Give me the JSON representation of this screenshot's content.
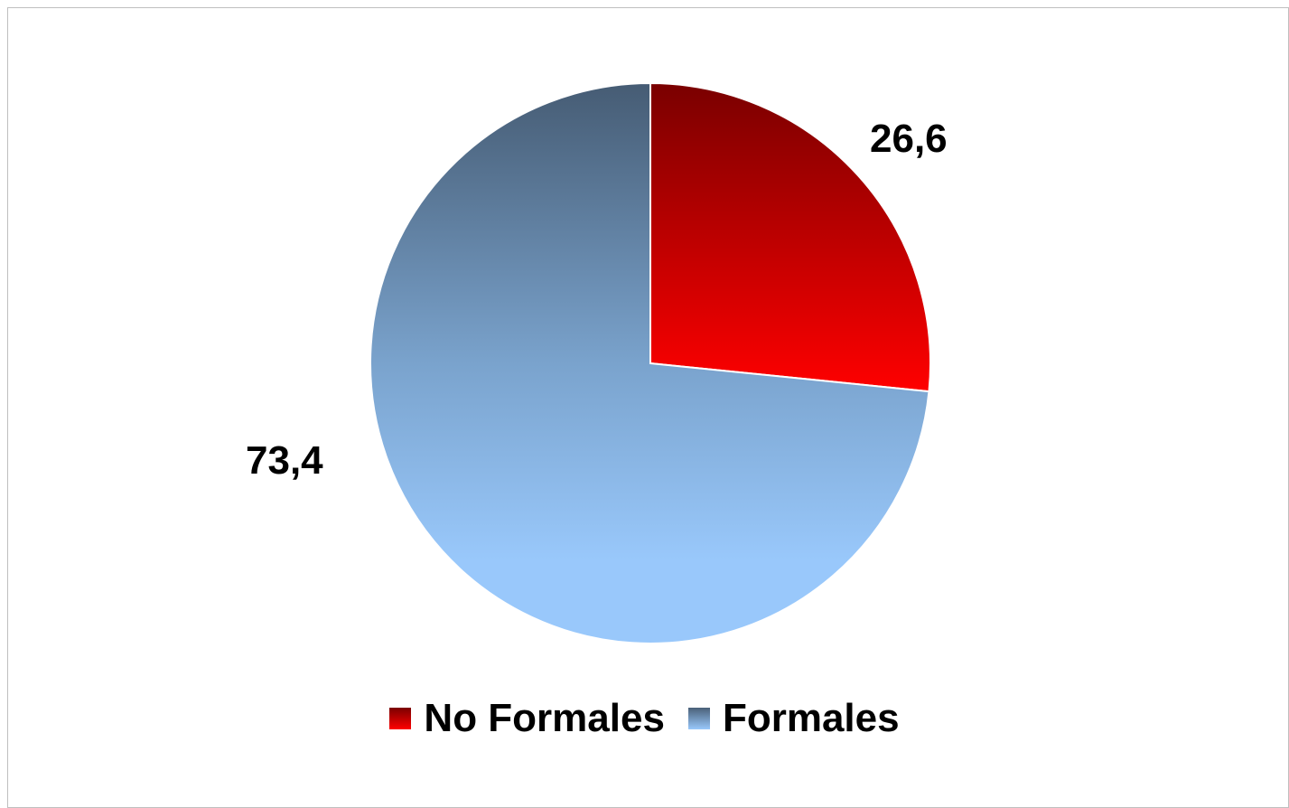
{
  "chart_data": {
    "type": "pie",
    "title": "",
    "slices": [
      {
        "name": "No Formales",
        "value": 26.6,
        "label": "26,6",
        "color_top": "#7a0000",
        "color_bottom": "#ff0000"
      },
      {
        "name": "Formales",
        "value": 73.4,
        "label": "73,4",
        "color_top": "#4a6078",
        "color_bottom": "#99c8fb"
      }
    ],
    "start_angle": "12 o'clock",
    "direction": "clockwise",
    "legend": {
      "placement": "bottom",
      "entries": [
        "No Formales",
        "Formales"
      ]
    }
  }
}
